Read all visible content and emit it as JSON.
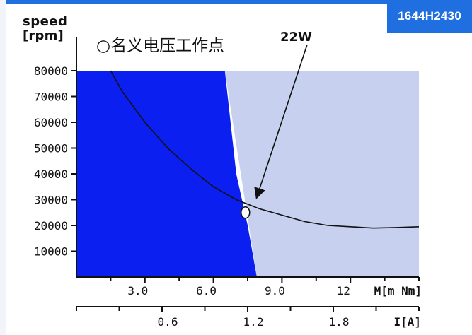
{
  "badge": {
    "text": "1644H2430"
  },
  "colors": {
    "badge_blue": "#1f6fe0",
    "continuous_region": "#0b1ff0",
    "intermittent_region": "#c7d0ee",
    "curve": "#111111",
    "axis": "#111111"
  },
  "chart_data": {
    "type": "line",
    "title": "",
    "y_axis": {
      "label_top": "speed",
      "label_bottom": "[rpm]",
      "range": [
        0,
        80000
      ],
      "ticks": [
        10000,
        20000,
        30000,
        40000,
        50000,
        60000,
        70000,
        80000
      ],
      "tick_labels": [
        "10000",
        "20000",
        "30000",
        "40000",
        "50000",
        "60000",
        "70000",
        "80000"
      ]
    },
    "x_axis_torque": {
      "label": "M[m Nm]",
      "range": [
        0,
        15.0
      ],
      "ticks": [
        3.0,
        6.0,
        9.0,
        12.0
      ],
      "tick_labels": [
        "3.0",
        "6.0",
        "9.0",
        "12"
      ]
    },
    "x_axis_current": {
      "label": "I[A]",
      "range": [
        0,
        2.4
      ],
      "ticks": [
        0.6,
        1.2,
        1.8
      ],
      "tick_labels": [
        "0.6",
        "1.2",
        "1.8"
      ]
    },
    "regions": [
      {
        "name": "continuous",
        "boundary": [
          {
            "x": 0.0,
            "y": 80000
          },
          {
            "x": 6.5,
            "y": 80000
          },
          {
            "x": 7.0,
            "y": 40000
          },
          {
            "x": 7.5,
            "y": 20000
          },
          {
            "x": 7.9,
            "y": 0
          },
          {
            "x": 0.0,
            "y": 0
          }
        ]
      },
      {
        "name": "intermittent",
        "boundary": [
          {
            "x": 6.5,
            "y": 80000
          },
          {
            "x": 15.0,
            "y": 80000
          },
          {
            "x": 15.0,
            "y": 0
          },
          {
            "x": 7.9,
            "y": 0
          }
        ]
      }
    ],
    "series": [
      {
        "values": [
          {
            "x": 1.5,
            "y": 80000
          },
          {
            "x": 2.0,
            "y": 72000
          },
          {
            "x": 3.0,
            "y": 60000
          },
          {
            "x": 4.0,
            "y": 50000
          },
          {
            "x": 5.0,
            "y": 42000
          },
          {
            "x": 6.0,
            "y": 35000
          },
          {
            "x": 7.0,
            "y": 30000
          },
          {
            "x": 8.0,
            "y": 26500
          },
          {
            "x": 9.0,
            "y": 24000
          },
          {
            "x": 10.0,
            "y": 21500
          },
          {
            "x": 11.0,
            "y": 20000
          },
          {
            "x": 12.0,
            "y": 19500
          },
          {
            "x": 13.0,
            "y": 19000
          },
          {
            "x": 14.0,
            "y": 19200
          },
          {
            "x": 15.0,
            "y": 19500
          }
        ]
      }
    ],
    "marker": {
      "x": 7.4,
      "y": 25000
    },
    "annotations": {
      "operating_point_text": "○名义电压工作点",
      "power_text": "22W",
      "power_arrow_from": {
        "x": 10.1,
        "y": 90000
      },
      "power_arrow_to": {
        "x": 7.9,
        "y": 31000
      }
    }
  }
}
